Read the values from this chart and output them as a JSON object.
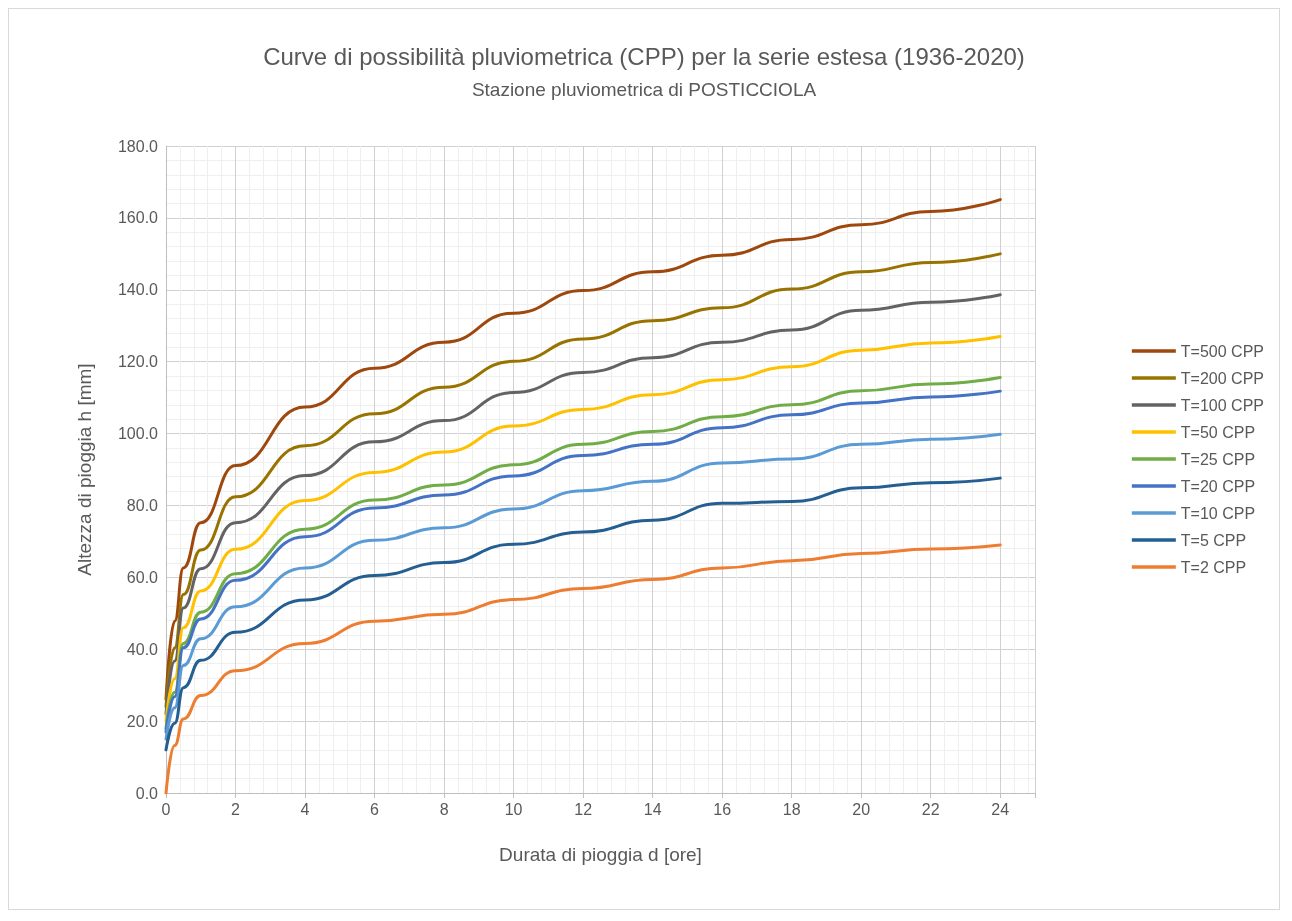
{
  "chart_data": {
    "type": "line",
    "title": "Curve di possibilità pluviometrica (CPP) per la serie estesa (1936-2020)",
    "subtitle": "Stazione pluviometrica di POSTICCIOLA",
    "xlabel": "Durata di pioggia d [ore]",
    "ylabel": "Altezza di pioggia h [mm]",
    "x": [
      0,
      0.25,
      0.5,
      1,
      2,
      4,
      6,
      8,
      10,
      12,
      14,
      16,
      18,
      20,
      22,
      24
    ],
    "series": [
      {
        "name": "T=500 CPP",
        "color": "#9e480e",
        "values": [
          26,
          47.8,
          62.6,
          75.2,
          91.1,
          107.4,
          118.2,
          125.4,
          133.5,
          139.8,
          145.0,
          149.6,
          154.0,
          158.1,
          161.8,
          165.1
        ]
      },
      {
        "name": "T=200 CPP",
        "color": "#997300",
        "values": [
          24,
          40.4,
          55.2,
          67.6,
          82.4,
          96.6,
          105.5,
          112.9,
          120.1,
          126.3,
          131.4,
          135.0,
          140.2,
          145.0,
          147.6,
          150.0
        ]
      },
      {
        "name": "T=100 CPP",
        "color": "#636363",
        "values": [
          22,
          36.7,
          51.5,
          62.4,
          75.2,
          88.3,
          97.7,
          103.6,
          111.4,
          117.0,
          121.1,
          125.4,
          128.8,
          134.3,
          136.5,
          138.6
        ]
      },
      {
        "name": "T=50 CPP",
        "color": "#ffc000",
        "values": [
          20,
          31.8,
          46.0,
          56.2,
          67.8,
          81.4,
          89.2,
          94.9,
          102.1,
          106.7,
          110.8,
          115.0,
          118.6,
          123.2,
          125.2,
          127.0
        ]
      },
      {
        "name": "T=25 CPP",
        "color": "#70ad47",
        "values": [
          18,
          28.0,
          41.6,
          50.3,
          61.0,
          73.4,
          81.5,
          85.7,
          91.3,
          97.0,
          100.6,
          104.7,
          108.0,
          111.9,
          113.8,
          115.6
        ]
      },
      {
        "name": "T=20 CPP",
        "color": "#4472c4",
        "values": [
          17,
          26.8,
          40.4,
          48.4,
          59.2,
          71.3,
          79.3,
          82.9,
          88.2,
          93.9,
          97.0,
          101.6,
          105.2,
          108.5,
          110.2,
          111.8
        ]
      },
      {
        "name": "T=10 CPP",
        "color": "#5b9bd5",
        "values": [
          15,
          23.7,
          35.5,
          42.9,
          51.8,
          62.6,
          70.3,
          73.8,
          79.0,
          84.1,
          86.7,
          91.8,
          92.9,
          97.0,
          98.4,
          99.8
        ]
      },
      {
        "name": "T=5 CPP",
        "color": "#255e91",
        "values": [
          12,
          19.4,
          29.3,
          36.9,
          44.7,
          53.7,
          60.5,
          64.1,
          69.2,
          72.6,
          75.9,
          80.6,
          81.1,
          84.9,
          86.3,
          87.6
        ]
      },
      {
        "name": "T=2 CPP",
        "color": "#ed7d31",
        "values": [
          0,
          13.2,
          20.6,
          27.1,
          34.0,
          41.6,
          47.8,
          49.7,
          53.8,
          56.9,
          59.4,
          62.6,
          64.6,
          66.6,
          67.9,
          69.0
        ]
      }
    ],
    "xlim": [
      0,
      25
    ],
    "xticks": [
      0,
      2,
      4,
      6,
      8,
      10,
      12,
      14,
      16,
      18,
      20,
      22,
      24
    ],
    "ylim": [
      0,
      180
    ],
    "yticks": [
      {
        "value": 0,
        "label": "0.0"
      },
      {
        "value": 20,
        "label": "20.0"
      },
      {
        "value": 40,
        "label": "40.0"
      },
      {
        "value": 60,
        "label": "60.0"
      },
      {
        "value": 80,
        "label": "80.0"
      },
      {
        "value": 100,
        "label": "100.0"
      },
      {
        "value": 120,
        "label": "120.0"
      },
      {
        "value": 140,
        "label": "140.0"
      },
      {
        "value": 160,
        "label": "160.0"
      },
      {
        "value": 180,
        "label": "180.0"
      }
    ],
    "grid": true,
    "legend": "right",
    "marker": "none",
    "line_style": "solid"
  }
}
